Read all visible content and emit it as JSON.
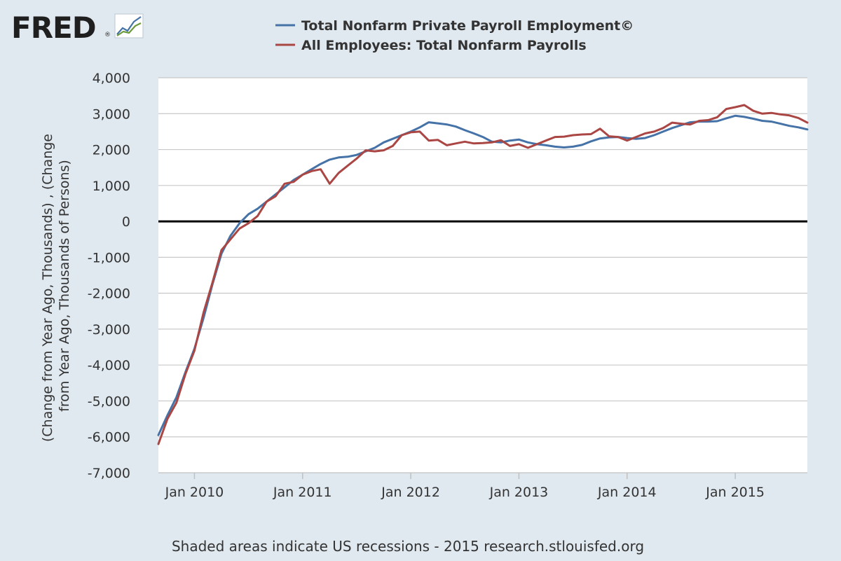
{
  "brand": {
    "name": "FRED",
    "mark": "®"
  },
  "footer": {
    "text": "Shaded areas indicate US recessions - 2015 research.stlouisfed.org"
  },
  "colors": {
    "background": "#e1e9f0",
    "plot_bg": "#ffffff",
    "grid": "#c8c8c8",
    "zero_line": "#000000"
  },
  "chart_data": {
    "type": "line",
    "title": "",
    "xlabel": "",
    "ylabel": "(Change from Year Ago, Thousands) , (Change from Year Ago, Thousands of Persons)",
    "ylabel_lines": [
      "(Change from Year Ago, Thousands) , (Change",
      "from Year Ago, Thousands of Persons)"
    ],
    "ylim": [
      -7000,
      4000
    ],
    "yticks": [
      4000,
      3000,
      2000,
      1000,
      0,
      -1000,
      -2000,
      -3000,
      -4000,
      -5000,
      -6000,
      -7000
    ],
    "ytick_labels": [
      "4,000",
      "3,000",
      "2,000",
      "1,000",
      "0",
      "-1,000",
      "-2,000",
      "-3,000",
      "-4,000",
      "-5,000",
      "-6,000",
      "-7,000"
    ],
    "x_range": [
      "2009-09",
      "2015-09"
    ],
    "xticks": [
      "2010-01",
      "2011-01",
      "2012-01",
      "2013-01",
      "2014-01",
      "2015-01"
    ],
    "xtick_labels": [
      "Jan 2010",
      "Jan 2011",
      "Jan 2012",
      "Jan 2013",
      "Jan 2014",
      "Jan 2015"
    ],
    "grid": true,
    "legend_position": "top",
    "x": [
      "2009-09",
      "2009-10",
      "2009-11",
      "2009-12",
      "2010-01",
      "2010-02",
      "2010-03",
      "2010-04",
      "2010-05",
      "2010-06",
      "2010-07",
      "2010-08",
      "2010-09",
      "2010-10",
      "2010-11",
      "2010-12",
      "2011-01",
      "2011-02",
      "2011-03",
      "2011-04",
      "2011-05",
      "2011-06",
      "2011-07",
      "2011-08",
      "2011-09",
      "2011-10",
      "2011-11",
      "2011-12",
      "2012-01",
      "2012-02",
      "2012-03",
      "2012-04",
      "2012-05",
      "2012-06",
      "2012-07",
      "2012-08",
      "2012-09",
      "2012-10",
      "2012-11",
      "2012-12",
      "2013-01",
      "2013-02",
      "2013-03",
      "2013-04",
      "2013-05",
      "2013-06",
      "2013-07",
      "2013-08",
      "2013-09",
      "2013-10",
      "2013-11",
      "2013-12",
      "2014-01",
      "2014-02",
      "2014-03",
      "2014-04",
      "2014-05",
      "2014-06",
      "2014-07",
      "2014-08",
      "2014-09",
      "2014-10",
      "2014-11",
      "2014-12",
      "2015-01",
      "2015-02",
      "2015-03",
      "2015-04",
      "2015-05",
      "2015-06",
      "2015-07",
      "2015-08",
      "2015-09"
    ],
    "series": [
      {
        "name": "Total Nonfarm Private Payroll Employment©",
        "color": "#4572a7",
        "values": [
          -5950,
          -5400,
          -4900,
          -4200,
          -3550,
          -2700,
          -1750,
          -900,
          -400,
          -50,
          200,
          350,
          550,
          750,
          950,
          1150,
          1300,
          1450,
          1600,
          1720,
          1780,
          1800,
          1850,
          1950,
          2050,
          2200,
          2300,
          2400,
          2500,
          2620,
          2760,
          2730,
          2700,
          2640,
          2540,
          2450,
          2350,
          2220,
          2200,
          2250,
          2280,
          2200,
          2150,
          2120,
          2080,
          2060,
          2080,
          2130,
          2230,
          2310,
          2340,
          2350,
          2320,
          2300,
          2320,
          2400,
          2500,
          2600,
          2680,
          2760,
          2780,
          2780,
          2790,
          2870,
          2940,
          2910,
          2860,
          2800,
          2780,
          2720,
          2660,
          2620,
          2560
        ]
      },
      {
        "name": "All Employees: Total Nonfarm Payrolls",
        "color": "#aa4643",
        "values": [
          -6200,
          -5500,
          -5050,
          -4250,
          -3600,
          -2550,
          -1700,
          -800,
          -500,
          -200,
          -50,
          150,
          550,
          700,
          1050,
          1100,
          1300,
          1400,
          1450,
          1050,
          1350,
          1550,
          1750,
          1980,
          1950,
          1980,
          2100,
          2400,
          2480,
          2500,
          2250,
          2270,
          2120,
          2170,
          2220,
          2170,
          2180,
          2200,
          2260,
          2100,
          2150,
          2050,
          2150,
          2250,
          2350,
          2360,
          2400,
          2420,
          2430,
          2580,
          2370,
          2350,
          2250,
          2350,
          2450,
          2500,
          2600,
          2750,
          2720,
          2700,
          2800,
          2820,
          2900,
          3130,
          3180,
          3240,
          3080,
          3000,
          3020,
          2980,
          2950,
          2880,
          2750
        ]
      }
    ]
  }
}
